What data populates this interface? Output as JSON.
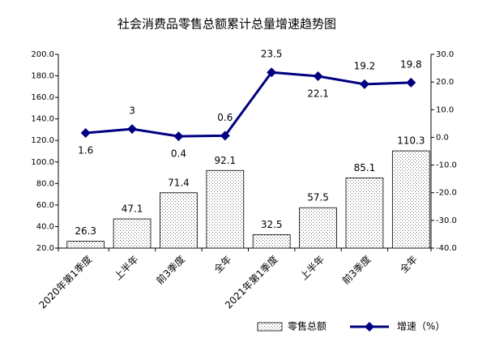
{
  "chart_data": {
    "type": "bar",
    "title": "社会消费品零售总额累计总量增速趋势图",
    "categories": [
      "2020年第1季度",
      "上半年",
      "前3季度",
      "全年",
      "2021年第1季度",
      "上半年",
      "前3季度",
      "全年"
    ],
    "series": [
      {
        "name": "零售总额",
        "type": "bar",
        "color": "#808080",
        "values": [
          26.3,
          47.1,
          71.4,
          92.1,
          32.5,
          57.5,
          85.1,
          110.3
        ]
      },
      {
        "name": "增速（%）",
        "type": "line",
        "axis": "y2",
        "color": "#000080",
        "values": [
          1.6,
          3.0,
          0.4,
          0.6,
          23.5,
          22.1,
          19.2,
          19.8
        ]
      }
    ],
    "ylim": [
      20,
      200
    ],
    "yticks": [
      {
        "value": 20,
        "label": "20.0"
      },
      {
        "value": 40,
        "label": "40.0"
      },
      {
        "value": 60,
        "label": "60.0"
      },
      {
        "value": 80,
        "label": "80.0"
      },
      {
        "value": 100,
        "label": "100.0"
      },
      {
        "value": 120,
        "label": "120.0"
      },
      {
        "value": 140,
        "label": "140.0"
      },
      {
        "value": 160,
        "label": "160.0"
      },
      {
        "value": 180,
        "label": "180.0"
      },
      {
        "value": 200,
        "label": "200.0"
      }
    ],
    "y2lim": [
      -40,
      30
    ],
    "y2ticks": [
      {
        "value": -40,
        "label": "-40.0"
      },
      {
        "value": -30,
        "label": "-30.0"
      },
      {
        "value": -20,
        "label": "-20.0"
      },
      {
        "value": -10,
        "label": "-10.0"
      },
      {
        "value": 0,
        "label": "0.0"
      },
      {
        "value": 10,
        "label": "10.0"
      },
      {
        "value": 20,
        "label": "20.0"
      },
      {
        "value": 30,
        "label": "30.0"
      }
    ],
    "grid": false,
    "legend": "bottom"
  }
}
